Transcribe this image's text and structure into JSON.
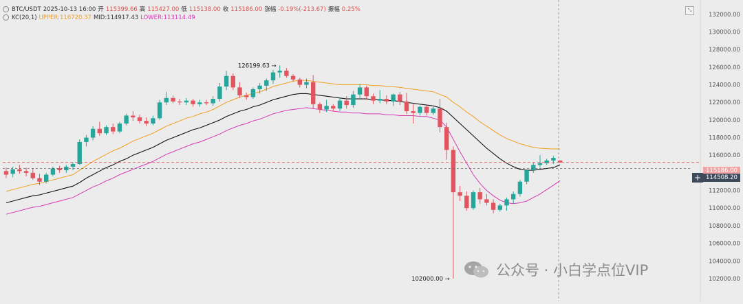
{
  "header": {
    "symbol": "BTC/USDT",
    "datetime": "2025-10-13 16:00",
    "open_label": "开",
    "open": "115399.66",
    "high_label": "高",
    "high": "115427.00",
    "low_label": "低",
    "low": "115138.00",
    "close_label": "收",
    "close": "115186.00",
    "change_label": "涨幅",
    "change": "-0.19%(-213.67)",
    "amplitude_label": "振幅",
    "amplitude": "0.25%"
  },
  "indicator": {
    "name": "KC(20,1)",
    "upper": "UPPER:116720.37",
    "mid": "MID:114917.43",
    "lower": "LOWER:113114.49"
  },
  "price_tags": {
    "last": "115186.00",
    "crosshair": "114508.20"
  },
  "annotations": {
    "high_mark": "126199.63",
    "low_mark": "102000.00"
  },
  "watermark": "公众号 · 小白学点位VIP",
  "colors": {
    "up": "#26a69a",
    "down": "#e05560",
    "upper": "#f0a020",
    "mid": "#111111",
    "lower": "#d63ab3",
    "background": "#ececec"
  },
  "chart_data": {
    "type": "candlestick",
    "y_axis_ticks": [
      102000,
      104000,
      106000,
      108000,
      110000,
      112000,
      114000,
      116000,
      118000,
      120000,
      122000,
      124000,
      126000,
      128000,
      130000,
      132000
    ],
    "ylim": [
      101000,
      133500
    ],
    "candles": [
      [
        114200,
        114600,
        113400,
        113800
      ],
      [
        113900,
        114700,
        113500,
        114400
      ],
      [
        114400,
        114900,
        113900,
        114200
      ],
      [
        114200,
        114600,
        113600,
        114000
      ],
      [
        114000,
        114500,
        113200,
        113400
      ],
      [
        113400,
        113900,
        112600,
        113000
      ],
      [
        113000,
        114000,
        112800,
        113800
      ],
      [
        113800,
        114700,
        113600,
        114500
      ],
      [
        114500,
        114800,
        114000,
        114300
      ],
      [
        114300,
        114900,
        114000,
        114700
      ],
      [
        114700,
        115200,
        114300,
        115000
      ],
      [
        115000,
        117800,
        114900,
        117500
      ],
      [
        117500,
        118300,
        117000,
        118000
      ],
      [
        118000,
        119300,
        117700,
        119000
      ],
      [
        119000,
        119800,
        118200,
        118500
      ],
      [
        118500,
        119400,
        118300,
        119200
      ],
      [
        119200,
        119600,
        118400,
        118700
      ],
      [
        118700,
        119800,
        118500,
        119600
      ],
      [
        119600,
        120700,
        119400,
        120500
      ],
      [
        120500,
        121000,
        119900,
        120300
      ],
      [
        120300,
        120600,
        119600,
        119900
      ],
      [
        119900,
        120300,
        119300,
        119600
      ],
      [
        119600,
        120500,
        119400,
        120200
      ],
      [
        120200,
        122300,
        120000,
        122000
      ],
      [
        122000,
        123200,
        121700,
        122500
      ],
      [
        122500,
        122800,
        121900,
        122100
      ],
      [
        122100,
        122400,
        121700,
        122000
      ],
      [
        122000,
        122500,
        121700,
        122200
      ],
      [
        122200,
        122400,
        121500,
        121800
      ],
      [
        121800,
        122300,
        121500,
        122000
      ],
      [
        122000,
        122300,
        121700,
        121900
      ],
      [
        121900,
        122700,
        121600,
        122400
      ],
      [
        122400,
        124200,
        122100,
        123800
      ],
      [
        123800,
        125600,
        123400,
        125000
      ],
      [
        125000,
        125300,
        123400,
        123700
      ],
      [
        123700,
        124300,
        122500,
        122800
      ],
      [
        122800,
        123100,
        122300,
        122600
      ],
      [
        122600,
        123700,
        122400,
        123500
      ],
      [
        123500,
        124200,
        123000,
        123900
      ],
      [
        123900,
        124700,
        123300,
        124500
      ],
      [
        124500,
        125700,
        124100,
        125400
      ],
      [
        125400,
        126199.63,
        124800,
        125600
      ],
      [
        125600,
        125900,
        124800,
        125000
      ],
      [
        125000,
        125200,
        124400,
        124600
      ],
      [
        124600,
        124800,
        123700,
        124000
      ],
      [
        124000,
        124700,
        123600,
        124300
      ],
      [
        124300,
        125100,
        121300,
        121800
      ],
      [
        121800,
        122000,
        120800,
        121200
      ],
      [
        121200,
        122300,
        120900,
        121600
      ],
      [
        121600,
        121800,
        121000,
        121300
      ],
      [
        121300,
        122500,
        121000,
        122200
      ],
      [
        122200,
        122700,
        121300,
        121700
      ],
      [
        121700,
        123300,
        121400,
        122900
      ],
      [
        122900,
        124100,
        122400,
        123700
      ],
      [
        123700,
        123900,
        122300,
        122700
      ],
      [
        122700,
        123000,
        121800,
        122200
      ],
      [
        122200,
        123400,
        121900,
        122400
      ],
      [
        122400,
        122800,
        121800,
        122100
      ],
      [
        122100,
        123000,
        121600,
        122900
      ],
      [
        122900,
        123200,
        121700,
        122100
      ],
      [
        122100,
        123100,
        120700,
        121000
      ],
      [
        121000,
        121800,
        119600,
        120800
      ],
      [
        120800,
        121600,
        120500,
        121500
      ],
      [
        121500,
        121700,
        120500,
        120800
      ],
      [
        120800,
        121500,
        120600,
        121300
      ],
      [
        121300,
        122400,
        118600,
        119200
      ],
      [
        119200,
        119700,
        115500,
        116600
      ],
      [
        116600,
        117000,
        102000,
        111800
      ],
      [
        111800,
        112500,
        110800,
        111400
      ],
      [
        111400,
        111900,
        109700,
        110000
      ],
      [
        110000,
        112000,
        109800,
        111800
      ],
      [
        111800,
        112300,
        110500,
        111000
      ],
      [
        111000,
        111600,
        110300,
        110600
      ],
      [
        110600,
        111000,
        109400,
        109800
      ],
      [
        109800,
        110500,
        109600,
        110300
      ],
      [
        110300,
        111200,
        109700,
        111000
      ],
      [
        111000,
        111900,
        110500,
        111600
      ],
      [
        111600,
        113200,
        111300,
        113000
      ],
      [
        113000,
        114400,
        112700,
        114300
      ],
      [
        114300,
        115200,
        114000,
        114900
      ],
      [
        114900,
        116000,
        114600,
        115100
      ],
      [
        115100,
        115600,
        114900,
        115400
      ],
      [
        115400,
        115900,
        115000,
        115700
      ],
      [
        115399.66,
        115427,
        115138,
        115186
      ]
    ],
    "kc_upper": [
      111900,
      112100,
      112300,
      112500,
      112700,
      112800,
      113000,
      113200,
      113400,
      113600,
      113800,
      114300,
      114800,
      115300,
      115700,
      116100,
      116500,
      116800,
      117200,
      117600,
      117900,
      118200,
      118500,
      118900,
      119300,
      119600,
      119900,
      120200,
      120400,
      120700,
      120900,
      121200,
      121600,
      122000,
      122300,
      122600,
      122800,
      123000,
      123200,
      123500,
      123800,
      124000,
      124200,
      124400,
      124500,
      124500,
      124400,
      124300,
      124200,
      124100,
      124000,
      124000,
      124000,
      124000,
      124000,
      123900,
      123900,
      123800,
      123800,
      123700,
      123600,
      123500,
      123400,
      123300,
      123200,
      122900,
      122600,
      122000,
      121500,
      120900,
      120400,
      119800,
      119300,
      118800,
      118300,
      117900,
      117600,
      117300,
      117100,
      116900,
      116800,
      116750,
      116720,
      116720
    ],
    "kc_mid": [
      110600,
      110800,
      111000,
      111200,
      111400,
      111500,
      111700,
      111900,
      112100,
      112300,
      112500,
      112900,
      113400,
      113800,
      114200,
      114600,
      114900,
      115300,
      115600,
      116000,
      116300,
      116600,
      116900,
      117300,
      117700,
      118000,
      118300,
      118600,
      118900,
      119100,
      119400,
      119700,
      120000,
      120400,
      120700,
      121000,
      121200,
      121500,
      121700,
      122000,
      122300,
      122500,
      122700,
      122900,
      123000,
      123000,
      122900,
      122800,
      122700,
      122600,
      122500,
      122400,
      122400,
      122400,
      122400,
      122300,
      122300,
      122200,
      122200,
      122100,
      122000,
      121900,
      121800,
      121700,
      121600,
      121400,
      121000,
      120300,
      119600,
      118900,
      118200,
      117500,
      116800,
      116200,
      115600,
      115100,
      114700,
      114400,
      114300,
      114300,
      114400,
      114500,
      114600,
      114917
    ],
    "kc_lower": [
      109300,
      109500,
      109700,
      109900,
      110100,
      110200,
      110400,
      110600,
      110800,
      111000,
      111200,
      111600,
      112000,
      112400,
      112700,
      113100,
      113400,
      113800,
      114100,
      114400,
      114700,
      115000,
      115300,
      115700,
      116100,
      116400,
      116700,
      117000,
      117300,
      117500,
      117800,
      118100,
      118400,
      118800,
      119100,
      119400,
      119600,
      119900,
      120100,
      120400,
      120700,
      120900,
      121100,
      121200,
      121300,
      121400,
      121300,
      121200,
      121100,
      121000,
      120900,
      120900,
      120800,
      120800,
      120700,
      120700,
      120700,
      120600,
      120600,
      120500,
      120500,
      120500,
      120400,
      120400,
      120200,
      120000,
      119200,
      117800,
      116400,
      115100,
      113800,
      112800,
      112000,
      111400,
      110900,
      110600,
      110500,
      110600,
      110800,
      111200,
      111600,
      112100,
      112600,
      113114
    ]
  }
}
